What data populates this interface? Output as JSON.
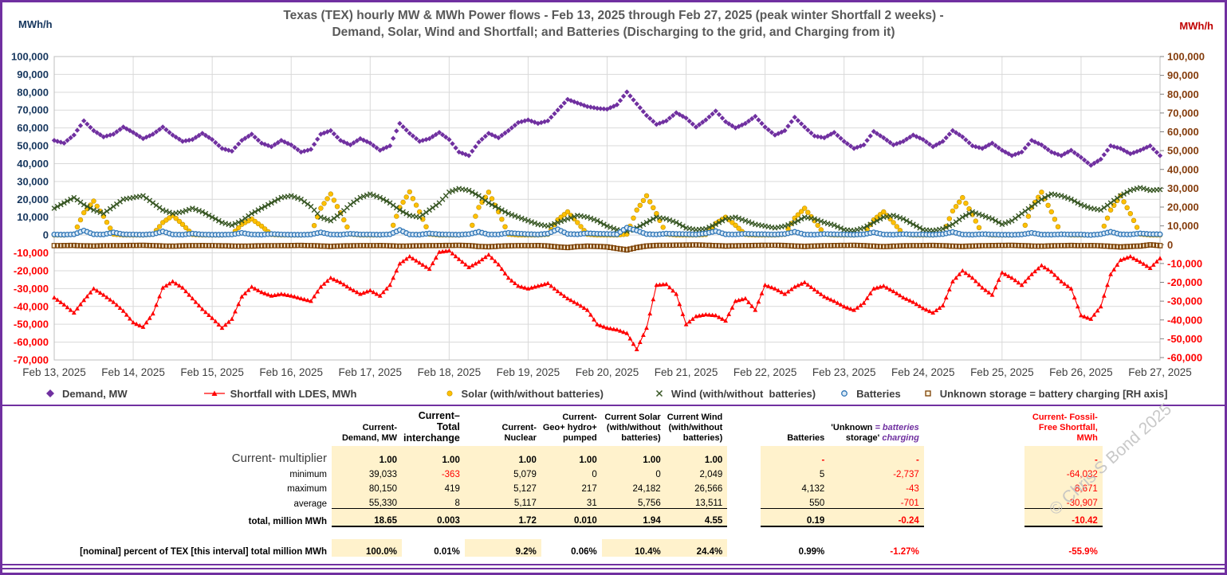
{
  "header": {
    "axis_unit_left": "MWh/h",
    "axis_unit_right": "MWh/h",
    "title_line1": "Texas (TEX) hourly MW & MWh Power flows - Feb 13, 2025 through Feb 27, 2025 (peak winter Shortfall 2 weeks) -",
    "title_line2": "Demand, Solar, Wind and Shortfall;  and Batteries (Discharging to the grid, and Charging from it)"
  },
  "watermark": "© Chris S Bond  2025",
  "colors": {
    "accent_purple": "#7030A0",
    "demand": "#7030A0",
    "shortfall": "#FF0000",
    "solar": "#FFC000",
    "wind": "#375623",
    "batteries": "#2E75B6",
    "unknown": "#7B3F00",
    "grid": "#D9D9D9",
    "cream": "#FFF2CC"
  },
  "chart_data": {
    "type": "scatter",
    "title": "Texas (TEX) hourly MW & MWh Power flows - Feb 13, 2025 through Feb 27, 2025",
    "x_unit": "hour of interval (hourly points, Feb 13 - Feb 27 2025)",
    "x_range": [
      0,
      336
    ],
    "sample_step_hours": 3,
    "grid": true,
    "legend_position": "bottom",
    "x_ticks": [
      "Feb 13, 2025",
      "Feb 14, 2025",
      "Feb 15, 2025",
      "Feb 16, 2025",
      "Feb 17, 2025",
      "Feb 18, 2025",
      "Feb 19, 2025",
      "Feb 20, 2025",
      "Feb 21, 2025",
      "Feb 22, 2025",
      "Feb 23, 2025",
      "Feb 24, 2025",
      "Feb 25, 2025",
      "Feb 26, 2025",
      "Feb 27, 2025"
    ],
    "left_axis": {
      "label": "MWh/h",
      "min": -70000,
      "max": 100000,
      "tick_step": 10000,
      "ticks": [
        "100,000",
        "90,000",
        "80,000",
        "70,000",
        "60,000",
        "50,000",
        "40,000",
        "30,000",
        "20,000",
        "10,000",
        "0",
        "-10,000",
        "-20,000",
        "-30,000",
        "-40,000",
        "-50,000",
        "-60,000",
        "-70,000"
      ]
    },
    "right_axis": {
      "label": "MWh/h",
      "min": -60000,
      "max": 100000,
      "tick_step": 10000,
      "ticks": [
        "100,000",
        "90,000",
        "80,000",
        "70,000",
        "60,000",
        "50,000",
        "40,000",
        "30,000",
        "20,000",
        "10,000",
        "0",
        "-10,000",
        "-20,000",
        "-30,000",
        "-40,000",
        "-50,000",
        "-60,000"
      ]
    },
    "series": [
      {
        "name": "Demand, MW",
        "axis": "left",
        "marker": "diamond",
        "color": "#7030A0",
        "values": [
          53000,
          51500,
          56000,
          64000,
          58500,
          55000,
          56500,
          60500,
          57500,
          54000,
          56500,
          60500,
          56000,
          52500,
          53500,
          57000,
          53500,
          48500,
          47000,
          53000,
          56500,
          51500,
          49500,
          53000,
          50500,
          46500,
          48000,
          56500,
          58500,
          53000,
          50500,
          54000,
          51500,
          47500,
          50000,
          62500,
          57000,
          52500,
          54000,
          57500,
          53500,
          46500,
          44500,
          52000,
          57000,
          54500,
          58500,
          63000,
          64500,
          62500,
          64000,
          70000,
          76000,
          74000,
          72000,
          71000,
          70500,
          73000,
          80150,
          73500,
          67000,
          62000,
          64000,
          68500,
          65500,
          60500,
          64500,
          69500,
          63500,
          60000,
          62500,
          66500,
          60500,
          56000,
          58500,
          66000,
          60500,
          55500,
          54500,
          57500,
          52500,
          48500,
          50500,
          58000,
          54500,
          50500,
          52500,
          56000,
          53500,
          49500,
          52500,
          58500,
          55000,
          50000,
          48500,
          51500,
          47500,
          44500,
          46500,
          53000,
          50500,
          46500,
          44500,
          47500,
          43500,
          39033,
          42500,
          50000,
          48500,
          45500,
          47500,
          50000,
          44500
        ]
      },
      {
        "name": "Shortfall with LDES, MWh",
        "axis": "left",
        "marker": "triangle-line",
        "color": "#FF0000",
        "values": [
          -35000,
          -39000,
          -43500,
          -36500,
          -30000,
          -33500,
          -37500,
          -42500,
          -49000,
          -51500,
          -44000,
          -29500,
          -26000,
          -29500,
          -35500,
          -41500,
          -46500,
          -52000,
          -47000,
          -34500,
          -29000,
          -32000,
          -34000,
          -33000,
          -34000,
          -35500,
          -37000,
          -29000,
          -24000,
          -26500,
          -30000,
          -33000,
          -31000,
          -34000,
          -28000,
          -16000,
          -12000,
          -15500,
          -19000,
          -9500,
          -8671,
          -13500,
          -18000,
          -15000,
          -11000,
          -16500,
          -24000,
          -28500,
          -30000,
          -28500,
          -27000,
          -31500,
          -35500,
          -38500,
          -42000,
          -50000,
          -52000,
          -53000,
          -55000,
          -64032,
          -52000,
          -28000,
          -27500,
          -33000,
          -50000,
          -45500,
          -44500,
          -45000,
          -48000,
          -37000,
          -35500,
          -42000,
          -28000,
          -30000,
          -33000,
          -29000,
          -26500,
          -30500,
          -34500,
          -37000,
          -40000,
          -42000,
          -38000,
          -30000,
          -28500,
          -31500,
          -35000,
          -37500,
          -41000,
          -43500,
          -39500,
          -26000,
          -20000,
          -24000,
          -29500,
          -33500,
          -21000,
          -24000,
          -28000,
          -22000,
          -17000,
          -20500,
          -26000,
          -30000,
          -45000,
          -47000,
          -40000,
          -22000,
          -14000,
          -12000,
          -15000,
          -18500,
          -13000
        ]
      },
      {
        "name": "Solar (with/without batteries)",
        "axis": "left",
        "marker": "circle",
        "color": "#FFC000",
        "values": [
          0,
          0,
          500,
          12500,
          19000,
          10500,
          500,
          0,
          0,
          0,
          400,
          7000,
          11000,
          6000,
          300,
          0,
          0,
          0,
          300,
          6000,
          9000,
          5000,
          300,
          0,
          0,
          0,
          500,
          15000,
          23000,
          12500,
          500,
          0,
          0,
          0,
          500,
          15500,
          24182,
          13000,
          500,
          0,
          0,
          0,
          500,
          15500,
          24000,
          13000,
          500,
          0,
          0,
          0,
          400,
          8500,
          13000,
          7000,
          400,
          0,
          0,
          0,
          500,
          14000,
          22000,
          12000,
          500,
          0,
          0,
          0,
          300,
          6500,
          10000,
          5500,
          300,
          0,
          0,
          0,
          400,
          9500,
          15000,
          8000,
          400,
          0,
          0,
          0,
          400,
          8500,
          13000,
          7000,
          400,
          0,
          0,
          0,
          500,
          13500,
          21000,
          11500,
          500,
          0,
          0,
          0,
          500,
          15500,
          24000,
          13000,
          500,
          0,
          0,
          0,
          500,
          14000,
          22000,
          12000,
          500,
          0,
          0
        ]
      },
      {
        "name": "Wind (with/without  batteries)",
        "axis": "left",
        "marker": "x",
        "color": "#375623",
        "values": [
          15000,
          18000,
          21000,
          17000,
          14000,
          12000,
          16000,
          20000,
          21000,
          22000,
          18000,
          14000,
          12000,
          13000,
          15000,
          13000,
          10000,
          7000,
          5500,
          8000,
          12000,
          15000,
          18000,
          21000,
          22000,
          20000,
          16000,
          10000,
          8000,
          12000,
          17000,
          21000,
          23000,
          21000,
          18000,
          14000,
          11000,
          10000,
          14000,
          18000,
          24000,
          26000,
          25000,
          22000,
          18000,
          15000,
          12000,
          10000,
          8000,
          6000,
          5000,
          7000,
          9000,
          11000,
          10000,
          8000,
          5000,
          3000,
          2049,
          4000,
          7000,
          10000,
          9000,
          7000,
          4000,
          3000,
          3500,
          6000,
          9000,
          10000,
          8000,
          6000,
          5000,
          4000,
          5000,
          7000,
          10000,
          9000,
          7000,
          5500,
          3000,
          2500,
          4000,
          7000,
          10000,
          11000,
          9000,
          6000,
          3000,
          2500,
          3500,
          6000,
          10000,
          13000,
          11000,
          9000,
          6000,
          8000,
          12000,
          16000,
          20000,
          23000,
          22000,
          20000,
          17000,
          15000,
          14000,
          18000,
          22000,
          25000,
          26566,
          25000,
          25500
        ]
      },
      {
        "name": "Batteries",
        "axis": "left",
        "marker": "open-circle",
        "color": "#2E75B6",
        "values": [
          300,
          200,
          400,
          2500,
          400,
          300,
          1500,
          400,
          300,
          200,
          500,
          2000,
          300,
          200,
          800,
          300,
          200,
          200,
          300,
          1200,
          300,
          200,
          600,
          300,
          200,
          150,
          300,
          1500,
          300,
          200,
          700,
          300,
          300,
          200,
          400,
          2800,
          300,
          200,
          900,
          400,
          300,
          200,
          500,
          1800,
          300,
          300,
          1200,
          800,
          500,
          300,
          800,
          3200,
          600,
          400,
          1000,
          700,
          600,
          400,
          4132,
          2500,
          500,
          300,
          800,
          600,
          500,
          300,
          900,
          2200,
          400,
          300,
          700,
          500,
          400,
          300,
          600,
          1800,
          300,
          200,
          600,
          400,
          300,
          200,
          400,
          1500,
          300,
          200,
          500,
          300,
          300,
          200,
          500,
          1700,
          300,
          200,
          500,
          300,
          200,
          150,
          300,
          1200,
          250,
          200,
          400,
          300,
          300,
          5,
          500,
          1800,
          400,
          300,
          900,
          500,
          400
        ]
      },
      {
        "name": "Unknown storage = battery charging [RH axis]",
        "axis": "right",
        "marker": "open-square",
        "color": "#7B3F00",
        "values": [
          -500,
          -450,
          -400,
          -600,
          -700,
          -550,
          -500,
          -450,
          -400,
          -350,
          -500,
          -700,
          -800,
          -600,
          -500,
          -450,
          -500,
          -600,
          -700,
          -800,
          -700,
          -600,
          -550,
          -500,
          -450,
          -400,
          -500,
          -700,
          -900,
          -700,
          -600,
          -500,
          -500,
          -450,
          -600,
          -800,
          -700,
          -600,
          -500,
          -450,
          -400,
          -350,
          -500,
          -900,
          -1100,
          -800,
          -600,
          -500,
          -500,
          -450,
          -700,
          -1200,
          -1500,
          -1000,
          -800,
          -900,
          -1200,
          -2000,
          -2737,
          -1500,
          -700,
          -400,
          -300,
          -250,
          -200,
          -150,
          -300,
          -500,
          -700,
          -600,
          -500,
          -400,
          -350,
          -300,
          -450,
          -700,
          -900,
          -700,
          -550,
          -450,
          -400,
          -350,
          -500,
          -800,
          -1000,
          -800,
          -600,
          -500,
          -450,
          -400,
          -550,
          -800,
          -900,
          -700,
          -550,
          -450,
          -400,
          -350,
          -500,
          -700,
          -800,
          -600,
          -500,
          -400,
          -500,
          -450,
          -600,
          -900,
          -1200,
          -900,
          -700,
          -43,
          -500
        ]
      }
    ]
  },
  "legend": [
    {
      "label": "Demand, MW",
      "marker": "diamond",
      "color": "#7030A0"
    },
    {
      "label": "Shortfall with LDES, MWh",
      "marker": "triangle-line",
      "color": "#FF0000"
    },
    {
      "label": "Solar (with/without batteries)",
      "marker": "circle",
      "color": "#FFC000"
    },
    {
      "label": "Wind (with/without  batteries)",
      "marker": "x",
      "color": "#375623"
    },
    {
      "label": "Batteries",
      "marker": "open-circle",
      "color": "#2E75B6"
    },
    {
      "label": "Unknown storage = battery charging [RH axis]",
      "marker": "open-square",
      "color": "#7B3F00"
    }
  ],
  "table": {
    "col_headers": [
      {
        "lines": [
          "Current-",
          "Demand, MW"
        ]
      },
      {
        "lines": [
          "Current–",
          "Total",
          "interchange"
        ],
        "big": true
      },
      {
        "lines": [
          "Current-",
          "Nuclear"
        ]
      },
      {
        "lines": [
          "Current-",
          "Geo+ hydro+",
          "pumped"
        ]
      },
      {
        "lines": [
          "Current Solar",
          "(with/without",
          "batteries)"
        ]
      },
      {
        "lines": [
          "Current Wind",
          "(with/without",
          "batteries)"
        ]
      },
      {
        "lines": [
          "Batteries"
        ]
      },
      {
        "lines": [
          "'Unknown",
          "storage'"
        ],
        "note": [
          "= batteries",
          "charging"
        ]
      },
      {
        "lines": [
          "Current- Fossil-",
          "Free Shortfall,",
          "MWh"
        ],
        "red": true
      }
    ],
    "rows": [
      {
        "label": "Current- multiplier",
        "kind": "mult",
        "values": [
          "1.00",
          "1.00",
          "1.00",
          "1.00",
          "1.00",
          "1.00",
          "-",
          "-",
          "-"
        ]
      },
      {
        "label": "minimum",
        "kind": "r",
        "values": [
          "39,033",
          "-363",
          "5,079",
          "0",
          "0",
          "2,049",
          "5",
          "-2,737",
          "-64,032"
        ]
      },
      {
        "label": "maximum",
        "kind": "r",
        "values": [
          "80,150",
          "419",
          "5,127",
          "217",
          "24,182",
          "26,566",
          "4,132",
          "-43",
          "-8,671"
        ]
      },
      {
        "label": "average",
        "kind": "r",
        "values": [
          "55,330",
          "8",
          "5,117",
          "31",
          "5,756",
          "13,511",
          "550",
          "-701",
          "-30,907"
        ]
      },
      {
        "label": "total, million MWh",
        "kind": "total",
        "values": [
          "18.65",
          "0.003",
          "1.72",
          "0.010",
          "1.94",
          "4.55",
          "0.19",
          "-0.24",
          "-10.42"
        ]
      },
      {
        "label": "[nominal] percent of TEX [this interval] total million MWh",
        "kind": "pct",
        "values": [
          "100.0%",
          "0.01%",
          "9.2%",
          "0.06%",
          "10.4%",
          "24.4%",
          "0.99%",
          "-1.27%",
          "-55.9%"
        ],
        "cream_cols": [
          0,
          2,
          4,
          5
        ]
      }
    ]
  }
}
